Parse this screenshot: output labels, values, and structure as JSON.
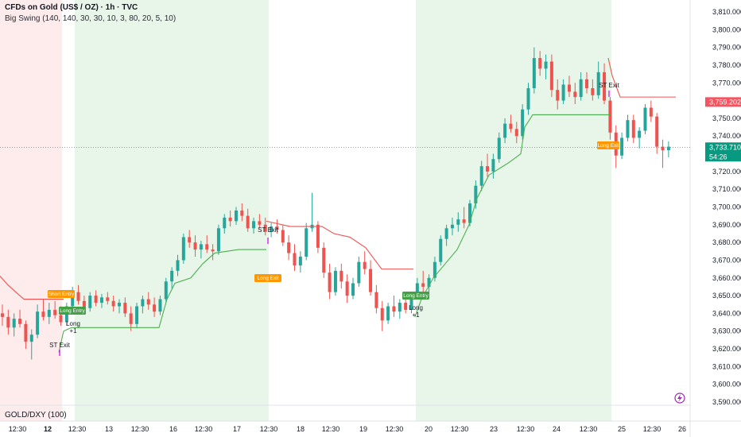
{
  "header": {
    "symbol_line": "CFDs on Gold (US$ / OZ) · 1h · TVC",
    "indicator_line": "Big Swing (140, 140, 30, 30, 10, 3, 80, 20, 5, 10)"
  },
  "subpane": {
    "label": "GOLD/DXY (100)"
  },
  "colors": {
    "bull": "#26a69a",
    "bear": "#ef5350",
    "supertrend_up": "#4caf50",
    "supertrend_down": "#ef5350",
    "long_tag": "#ff9800",
    "short_tag": "#ff9800",
    "exit_tag": "#43a047",
    "green_zone": "#e8f5e9",
    "red_zone": "#fdeceb",
    "current_price_bg": "#089981",
    "upper_price_bg": "#f7525f"
  },
  "price_axis": {
    "labels": [
      "3,810.000",
      "3,800.000",
      "3,790.000",
      "3,780.000",
      "3,770.000",
      "3,760.000",
      "3,750.000",
      "3,740.000",
      "3,730.000",
      "3,720.000",
      "3,710.000",
      "3,700.000",
      "3,690.000",
      "3,680.000",
      "3,670.000",
      "3,660.000",
      "3,650.000",
      "3,640.000",
      "3,630.000",
      "3,620.000",
      "3,610.000",
      "3,600.000",
      "3,590.000"
    ]
  },
  "price_tags": {
    "upper": "3,759.202",
    "current": "3,733.710",
    "countdown": "54:26"
  },
  "time_axis": {
    "labels": [
      {
        "t": "12:30",
        "bold": false
      },
      {
        "t": "12",
        "bold": true
      },
      {
        "t": "12:30",
        "bold": false
      },
      {
        "t": "13",
        "bold": false
      },
      {
        "t": "12:30",
        "bold": false
      },
      {
        "t": "16",
        "bold": false
      },
      {
        "t": "12:30",
        "bold": false
      },
      {
        "t": "17",
        "bold": false
      },
      {
        "t": "12:30",
        "bold": false
      },
      {
        "t": "18",
        "bold": false
      },
      {
        "t": "12:30",
        "bold": false
      },
      {
        "t": "19",
        "bold": false
      },
      {
        "t": "12:30",
        "bold": false
      },
      {
        "t": "20",
        "bold": false
      },
      {
        "t": "12:30",
        "bold": false
      },
      {
        "t": "23",
        "bold": false
      },
      {
        "t": "12:30",
        "bold": false
      },
      {
        "t": "24",
        "bold": false
      },
      {
        "t": "12:30",
        "bold": false
      },
      {
        "t": "25",
        "bold": false
      },
      {
        "t": "12:30",
        "bold": false
      },
      {
        "t": "26",
        "bold": false
      }
    ]
  },
  "signals": {
    "short_entry": "Short Entry",
    "long_entry_1": "Long Entry",
    "long_entry_2": "Long Entry",
    "long_exit_1": "Long Exit",
    "long_exit_2": "Long Exit",
    "st_exit_1": "ST Exit",
    "st_exit_2": "ST Exit",
    "st_exit_3": "ST Exit",
    "long_note_1": "Long",
    "long_note_1b": "+1",
    "long_note_2": "Long",
    "long_note_2b": "+1"
  },
  "chart_data": {
    "type": "candlestick",
    "title": "CFDs on Gold (US$ / OZ) · 1h · TVC",
    "ylim": [
      3590,
      3812
    ],
    "x_axis_labels": [
      "12:30",
      "12",
      "12:30",
      "13",
      "12:30",
      "16",
      "12:30",
      "17",
      "12:30",
      "18",
      "12:30",
      "19",
      "12:30",
      "20",
      "12:30",
      "23",
      "12:30",
      "24",
      "12:30",
      "25",
      "12:30",
      "26"
    ],
    "grid": false,
    "candles_ohlc": [
      [
        3640,
        3645,
        3633,
        3638
      ],
      [
        3638,
        3642,
        3628,
        3632
      ],
      [
        3632,
        3640,
        3627,
        3637
      ],
      [
        3637,
        3642,
        3632,
        3634
      ],
      [
        3634,
        3636,
        3620,
        3624
      ],
      [
        3624,
        3631,
        3614,
        3628
      ],
      [
        3628,
        3645,
        3626,
        3641
      ],
      [
        3641,
        3648,
        3636,
        3638
      ],
      [
        3638,
        3646,
        3634,
        3642
      ],
      [
        3642,
        3647,
        3637,
        3639
      ],
      [
        3639,
        3644,
        3633,
        3635
      ],
      [
        3635,
        3646,
        3633,
        3644
      ],
      [
        3644,
        3655,
        3640,
        3652
      ],
      [
        3652,
        3656,
        3645,
        3647
      ],
      [
        3647,
        3650,
        3640,
        3643
      ],
      [
        3643,
        3652,
        3641,
        3650
      ],
      [
        3650,
        3653,
        3644,
        3646
      ],
      [
        3646,
        3651,
        3643,
        3649
      ],
      [
        3649,
        3652,
        3645,
        3647
      ],
      [
        3647,
        3650,
        3641,
        3644
      ],
      [
        3644,
        3648,
        3640,
        3646
      ],
      [
        3646,
        3649,
        3638,
        3640
      ],
      [
        3640,
        3644,
        3630,
        3634
      ],
      [
        3634,
        3646,
        3632,
        3644
      ],
      [
        3644,
        3650,
        3640,
        3648
      ],
      [
        3648,
        3652,
        3642,
        3645
      ],
      [
        3645,
        3649,
        3638,
        3641
      ],
      [
        3641,
        3650,
        3639,
        3648
      ],
      [
        3648,
        3660,
        3646,
        3658
      ],
      [
        3658,
        3666,
        3654,
        3664
      ],
      [
        3664,
        3673,
        3661,
        3670
      ],
      [
        3670,
        3685,
        3668,
        3683
      ],
      [
        3683,
        3687,
        3677,
        3680
      ],
      [
        3680,
        3684,
        3672,
        3676
      ],
      [
        3676,
        3681,
        3671,
        3679
      ],
      [
        3679,
        3684,
        3674,
        3676
      ],
      [
        3676,
        3679,
        3670,
        3675
      ],
      [
        3675,
        3690,
        3673,
        3688
      ],
      [
        3688,
        3696,
        3685,
        3694
      ],
      [
        3694,
        3698,
        3689,
        3692
      ],
      [
        3692,
        3700,
        3690,
        3698
      ],
      [
        3698,
        3702,
        3692,
        3695
      ],
      [
        3695,
        3699,
        3686,
        3688
      ],
      [
        3688,
        3694,
        3685,
        3692
      ],
      [
        3692,
        3696,
        3688,
        3690
      ],
      [
        3690,
        3694,
        3684,
        3686
      ],
      [
        3686,
        3691,
        3683,
        3689
      ],
      [
        3689,
        3693,
        3685,
        3687
      ],
      [
        3687,
        3690,
        3678,
        3680
      ],
      [
        3680,
        3684,
        3670,
        3674
      ],
      [
        3674,
        3679,
        3664,
        3667
      ],
      [
        3667,
        3675,
        3663,
        3672
      ],
      [
        3672,
        3691,
        3670,
        3688
      ],
      [
        3688,
        3708,
        3686,
        3690
      ],
      [
        3690,
        3692,
        3674,
        3677
      ],
      [
        3677,
        3680,
        3660,
        3663
      ],
      [
        3663,
        3668,
        3648,
        3652
      ],
      [
        3652,
        3666,
        3650,
        3664
      ],
      [
        3664,
        3668,
        3654,
        3658
      ],
      [
        3658,
        3662,
        3646,
        3650
      ],
      [
        3650,
        3660,
        3648,
        3657
      ],
      [
        3657,
        3672,
        3655,
        3669
      ],
      [
        3669,
        3675,
        3662,
        3665
      ],
      [
        3665,
        3670,
        3650,
        3652
      ],
      [
        3652,
        3656,
        3640,
        3643
      ],
      [
        3643,
        3647,
        3630,
        3636
      ],
      [
        3636,
        3646,
        3634,
        3644
      ],
      [
        3644,
        3650,
        3638,
        3641
      ],
      [
        3641,
        3648,
        3637,
        3646
      ],
      [
        3646,
        3650,
        3640,
        3642
      ],
      [
        3642,
        3652,
        3640,
        3650
      ],
      [
        3650,
        3660,
        3648,
        3657
      ],
      [
        3657,
        3664,
        3652,
        3655
      ],
      [
        3655,
        3662,
        3650,
        3660
      ],
      [
        3660,
        3672,
        3658,
        3669
      ],
      [
        3669,
        3684,
        3667,
        3682
      ],
      [
        3682,
        3690,
        3678,
        3688
      ],
      [
        3688,
        3694,
        3684,
        3690
      ],
      [
        3690,
        3697,
        3686,
        3693
      ],
      [
        3693,
        3700,
        3688,
        3691
      ],
      [
        3691,
        3704,
        3689,
        3702
      ],
      [
        3702,
        3715,
        3699,
        3712
      ],
      [
        3712,
        3726,
        3709,
        3723
      ],
      [
        3723,
        3730,
        3717,
        3720
      ],
      [
        3720,
        3730,
        3716,
        3727
      ],
      [
        3727,
        3742,
        3725,
        3739
      ],
      [
        3739,
        3750,
        3736,
        3747
      ],
      [
        3747,
        3752,
        3742,
        3744
      ],
      [
        3744,
        3748,
        3736,
        3740
      ],
      [
        3740,
        3758,
        3738,
        3755
      ],
      [
        3755,
        3770,
        3752,
        3767
      ],
      [
        3767,
        3790,
        3764,
        3784
      ],
      [
        3784,
        3788,
        3774,
        3778
      ],
      [
        3778,
        3786,
        3772,
        3782
      ],
      [
        3782,
        3786,
        3762,
        3766
      ],
      [
        3766,
        3772,
        3755,
        3760
      ],
      [
        3760,
        3772,
        3758,
        3769
      ],
      [
        3769,
        3774,
        3762,
        3765
      ],
      [
        3765,
        3770,
        3758,
        3762
      ],
      [
        3762,
        3776,
        3760,
        3772
      ],
      [
        3772,
        3776,
        3764,
        3767
      ],
      [
        3767,
        3772,
        3760,
        3763
      ],
      [
        3763,
        3782,
        3761,
        3776
      ],
      [
        3776,
        3781,
        3758,
        3760
      ],
      [
        3760,
        3762,
        3738,
        3742
      ],
      [
        3742,
        3746,
        3722,
        3729
      ],
      [
        3729,
        3742,
        3727,
        3739
      ],
      [
        3739,
        3752,
        3737,
        3749
      ],
      [
        3749,
        3752,
        3736,
        3739
      ],
      [
        3739,
        3745,
        3733,
        3743
      ],
      [
        3743,
        3758,
        3741,
        3756
      ],
      [
        3756,
        3760,
        3748,
        3751
      ],
      [
        3751,
        3753,
        3730,
        3734
      ],
      [
        3734,
        3738,
        3722,
        3732
      ],
      [
        3732,
        3737,
        3728,
        3734
      ]
    ],
    "series": [
      {
        "name": "Big Swing supertrend",
        "values": []
      }
    ]
  }
}
